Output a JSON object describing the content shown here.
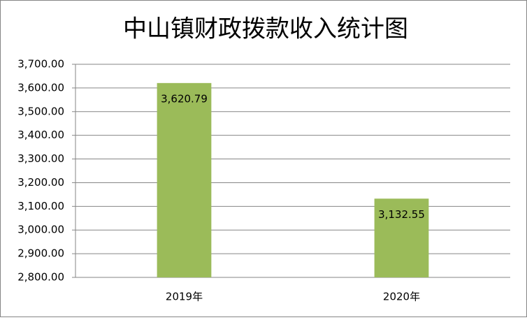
{
  "chart_data": {
    "type": "bar",
    "title": "中山镇财政拨款收入统计图",
    "categories": [
      "2019年",
      "2020年"
    ],
    "values": [
      3620.79,
      3132.55
    ],
    "value_labels": [
      "3,620.79",
      "3,132.55"
    ],
    "color": "#9bbb59",
    "ylim": [
      2800,
      3700
    ],
    "yticks": [
      {
        "value": 2800,
        "label": "2,800.00"
      },
      {
        "value": 2900,
        "label": "2,900.00"
      },
      {
        "value": 3000,
        "label": "3,000.00"
      },
      {
        "value": 3100,
        "label": "3,100.00"
      },
      {
        "value": 3200,
        "label": "3,200.00"
      },
      {
        "value": 3300,
        "label": "3,300.00"
      },
      {
        "value": 3400,
        "label": "3,400.00"
      },
      {
        "value": 3500,
        "label": "3,500.00"
      },
      {
        "value": 3600,
        "label": "3,600.00"
      },
      {
        "value": 3700,
        "label": "3,700.00"
      }
    ],
    "grid": true
  }
}
